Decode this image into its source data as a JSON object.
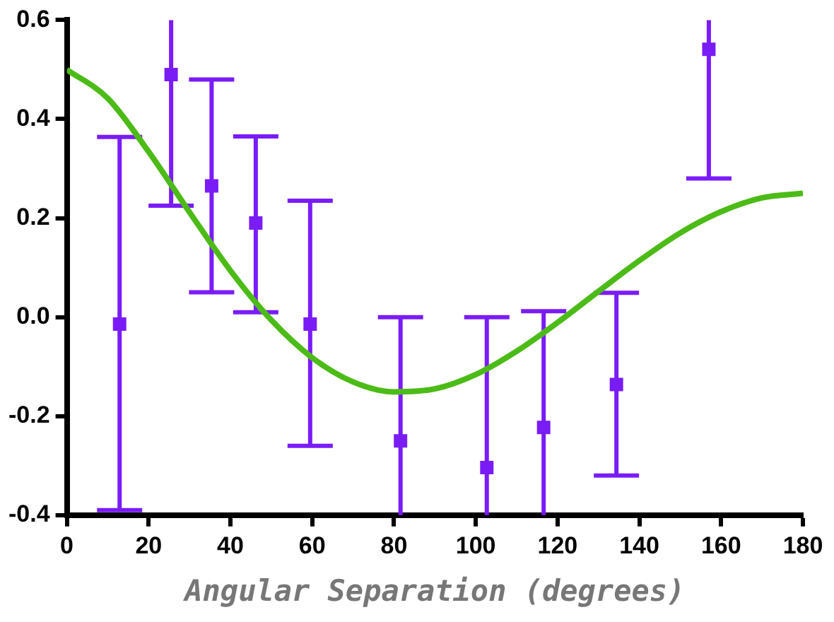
{
  "chart_data": {
    "type": "scatter",
    "xlabel": "Angular Separation (degrees)",
    "xlim": [
      0,
      180
    ],
    "xticks": [
      0,
      20,
      40,
      60,
      80,
      100,
      120,
      140,
      160,
      180
    ],
    "ylim": [
      -0.4,
      0.6
    ],
    "yticks": [
      -0.4,
      -0.2,
      {
        "value": 0,
        "label": "0.0"
      },
      0.2,
      0.4,
      0.6
    ],
    "grid": false,
    "legend": false,
    "marker": "square",
    "series": [
      {
        "type": "line",
        "color": "#4cbb17",
        "x": [
          0,
          10,
          20,
          30,
          40,
          50,
          60,
          70,
          80,
          90,
          100,
          110,
          120,
          130,
          140,
          150,
          160,
          170,
          180
        ],
        "values": [
          0.5,
          0.442,
          0.334,
          0.212,
          0.094,
          -0.006,
          -0.082,
          -0.131,
          -0.151,
          -0.145,
          -0.116,
          -0.069,
          -0.011,
          0.052,
          0.114,
          0.17,
          0.213,
          0.241,
          0.25
        ],
        "marker": "none"
      },
      {
        "color": "#7a1cf6",
        "x": [
          12.9,
          25.5,
          35.4,
          46.2,
          59.5,
          81.6,
          102.7,
          116.6,
          134.4,
          157
        ],
        "values": [
          -0.014,
          0.49,
          0.265,
          0.19,
          -0.014,
          -0.25,
          -0.304,
          -0.223,
          -0.136,
          0.541
        ],
        "errors": [
          [
            -0.39,
            0.364
          ],
          [
            0.225,
            0.6
          ],
          [
            0.05,
            0.48
          ],
          [
            0.01,
            0.365
          ],
          [
            -0.26,
            0.235
          ],
          [
            -0.4,
            0
          ],
          [
            -0.4,
            0
          ],
          [
            -0.4,
            0.012
          ],
          [
            -0.32,
            0.049
          ],
          [
            0.28,
            0.6
          ]
        ]
      }
    ]
  }
}
